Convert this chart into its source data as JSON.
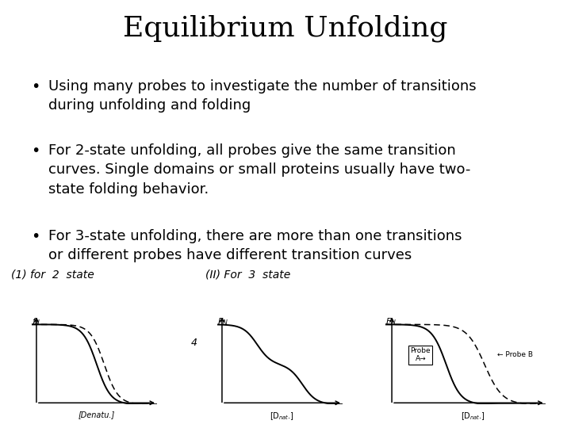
{
  "title": "Equilibrium Unfolding",
  "bullet1": "Using many probes to investigate the number of transitions\nduring unfolding and folding",
  "bullet2": "For 2-state unfolding, all probes give the same transition\ncurves. Single domains or small proteins usually have two-\nstate folding behavior.",
  "bullet3": "For 3-state unfolding, there are more than one transitions\nor different probes have different transition curves",
  "label1": "(1) for  2  state",
  "label2": "(II) For  3  state",
  "background_color": "#ffffff",
  "text_color": "#000000",
  "title_fontsize": 26,
  "bullet_fontsize": 13,
  "diagram_label_fontsize": 10
}
